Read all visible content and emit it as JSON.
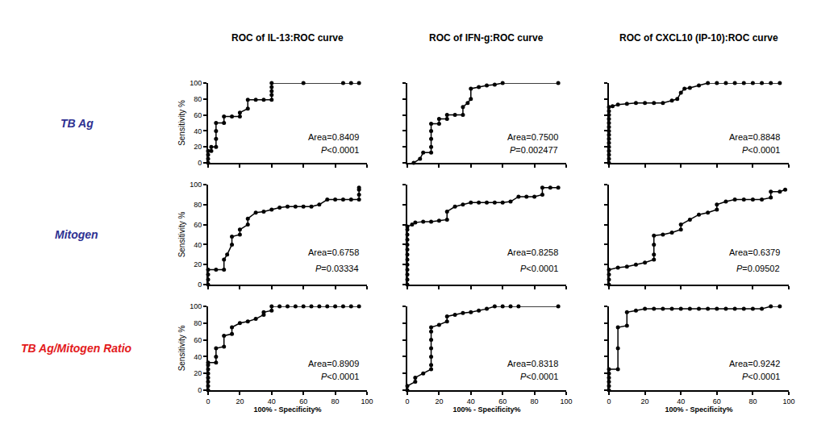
{
  "row_labels": [
    {
      "text": "TB Ag",
      "color": "#2e3192"
    },
    {
      "text": "Mitogen",
      "color": "#2e3192"
    },
    {
      "text": "TB Ag/Mitogen Ratio",
      "color": "#e31a1c"
    }
  ],
  "chart_data": [
    {
      "type": "line",
      "title": "ROC of IL-13:ROC curve",
      "y_label": "Sensitivity %",
      "color": "#000000",
      "marker": "circle",
      "tick_labels": "y",
      "x": [
        0,
        0,
        0,
        0,
        2,
        2,
        5,
        5,
        5,
        5,
        10,
        10,
        15,
        20,
        20,
        25,
        25,
        30,
        35,
        40,
        40,
        40,
        40,
        40,
        60,
        85,
        90,
        95
      ],
      "values": [
        0,
        5,
        10,
        15,
        15,
        20,
        20,
        30,
        40,
        50,
        50,
        58,
        58,
        58,
        63,
        68,
        79,
        79,
        79,
        79,
        85,
        90,
        95,
        100,
        100,
        100,
        100,
        100
      ],
      "xlim": [
        0,
        100
      ],
      "ylim": [
        0,
        100
      ],
      "xticks": [
        0,
        20,
        40,
        60,
        80,
        100
      ],
      "yticks": [
        0,
        20,
        40,
        60,
        80,
        100
      ],
      "annotations": [
        "Area=0.8409",
        "P<0.0001"
      ]
    },
    {
      "type": "line",
      "title": "ROC of IFN-g:ROC curve",
      "color": "#000000",
      "marker": "circle",
      "tick_labels": false,
      "x": [
        4,
        8,
        10,
        15,
        15,
        15,
        15,
        15,
        20,
        20,
        25,
        25,
        30,
        35,
        35,
        38,
        40,
        40,
        45,
        50,
        55,
        60,
        95
      ],
      "values": [
        0,
        5,
        13,
        13,
        20,
        30,
        40,
        49,
        49,
        55,
        55,
        60,
        60,
        60,
        70,
        75,
        80,
        93,
        95,
        97,
        98,
        100,
        100
      ],
      "xlim": [
        0,
        100
      ],
      "ylim": [
        0,
        100
      ],
      "xticks": [
        0,
        20,
        40,
        60,
        80,
        100
      ],
      "yticks": [
        0,
        20,
        40,
        60,
        80,
        100
      ],
      "annotations": [
        "Area=0.7500",
        "P=0.002477"
      ]
    },
    {
      "type": "line",
      "title": "ROC of CXCL10 (IP-10):ROC curve",
      "color": "#000000",
      "marker": "circle",
      "tick_labels": false,
      "x": [
        0,
        0,
        0,
        0,
        0,
        0,
        0,
        0,
        0,
        0,
        0,
        0,
        0,
        0,
        0,
        2,
        5,
        10,
        15,
        20,
        25,
        30,
        35,
        38,
        40,
        42,
        45,
        50,
        55,
        60,
        65,
        70,
        75,
        80,
        85,
        90,
        95
      ],
      "values": [
        0,
        5,
        10,
        15,
        20,
        25,
        30,
        35,
        40,
        45,
        50,
        55,
        60,
        65,
        70,
        71,
        73,
        74,
        75,
        75,
        75,
        75,
        78,
        80,
        88,
        93,
        94,
        97,
        100,
        100,
        100,
        100,
        100,
        100,
        100,
        100,
        100
      ],
      "xlim": [
        0,
        100
      ],
      "ylim": [
        0,
        100
      ],
      "xticks": [
        0,
        20,
        40,
        60,
        80,
        100
      ],
      "yticks": [
        0,
        20,
        40,
        60,
        80,
        100
      ],
      "annotations": [
        "Area=0.8848",
        "P<0.0001"
      ]
    },
    {
      "type": "line",
      "y_label": "Sensitivity %",
      "color": "#000000",
      "marker": "circle",
      "tick_labels": "y",
      "x": [
        0,
        0,
        0,
        0,
        5,
        10,
        10,
        12,
        15,
        15,
        20,
        20,
        25,
        25,
        30,
        35,
        40,
        45,
        50,
        55,
        60,
        65,
        70,
        75,
        80,
        85,
        90,
        95,
        95,
        95,
        95
      ],
      "values": [
        0,
        5,
        10,
        15,
        15,
        15,
        25,
        30,
        40,
        48,
        50,
        55,
        60,
        66,
        72,
        73,
        75,
        77,
        78,
        78,
        78,
        78,
        80,
        85,
        85,
        85,
        85,
        85,
        90,
        95,
        97
      ],
      "xlim": [
        0,
        100
      ],
      "ylim": [
        0,
        100
      ],
      "xticks": [
        0,
        20,
        40,
        60,
        80,
        100
      ],
      "yticks": [
        0,
        20,
        40,
        60,
        80,
        100
      ],
      "annotations": [
        "Area=0.6758",
        "P=0.03334"
      ]
    },
    {
      "type": "line",
      "color": "#000000",
      "marker": "circle",
      "tick_labels": false,
      "x": [
        0,
        0,
        0,
        0,
        0,
        0,
        0,
        0,
        0,
        0,
        0,
        0,
        0,
        3,
        5,
        10,
        15,
        20,
        25,
        25,
        30,
        35,
        40,
        45,
        50,
        55,
        60,
        65,
        70,
        75,
        80,
        85,
        85,
        90,
        95
      ],
      "values": [
        0,
        5,
        10,
        15,
        20,
        25,
        30,
        35,
        40,
        45,
        50,
        55,
        58,
        60,
        62,
        63,
        63,
        64,
        65,
        73,
        78,
        80,
        82,
        82,
        82,
        82,
        82,
        83,
        88,
        88,
        88,
        90,
        97,
        97,
        97
      ],
      "xlim": [
        0,
        100
      ],
      "ylim": [
        0,
        100
      ],
      "xticks": [
        0,
        20,
        40,
        60,
        80,
        100
      ],
      "yticks": [
        0,
        20,
        40,
        60,
        80,
        100
      ],
      "annotations": [
        "Area=0.8258",
        "P<0.0001"
      ]
    },
    {
      "type": "line",
      "color": "#000000",
      "marker": "circle",
      "tick_labels": false,
      "x": [
        0,
        0,
        0,
        0,
        5,
        10,
        15,
        20,
        25,
        25,
        25,
        25,
        30,
        35,
        40,
        40,
        45,
        50,
        55,
        60,
        60,
        65,
        70,
        75,
        80,
        85,
        90,
        90,
        95,
        98
      ],
      "values": [
        0,
        5,
        10,
        15,
        17,
        18,
        20,
        22,
        25,
        30,
        40,
        49,
        50,
        52,
        55,
        60,
        65,
        70,
        72,
        75,
        80,
        83,
        85,
        85,
        85,
        85,
        87,
        93,
        93,
        95
      ],
      "xlim": [
        0,
        100
      ],
      "ylim": [
        0,
        100
      ],
      "xticks": [
        0,
        20,
        40,
        60,
        80,
        100
      ],
      "yticks": [
        0,
        20,
        40,
        60,
        80,
        100
      ],
      "annotations": [
        "Area=0.6379",
        "P=0.09502"
      ]
    },
    {
      "type": "line",
      "x_label": "100% - Specificity%",
      "y_label": "Sensitivity %",
      "color": "#000000",
      "marker": "circle",
      "tick_labels": true,
      "x": [
        0,
        0,
        0,
        0,
        0,
        0,
        0,
        0,
        5,
        5,
        5,
        10,
        10,
        15,
        15,
        20,
        25,
        30,
        35,
        35,
        40,
        40,
        45,
        50,
        55,
        60,
        65,
        70,
        75,
        80,
        85,
        90,
        95
      ],
      "values": [
        0,
        5,
        10,
        15,
        20,
        25,
        30,
        33,
        33,
        40,
        50,
        52,
        65,
        67,
        75,
        80,
        82,
        85,
        90,
        93,
        95,
        100,
        100,
        100,
        100,
        100,
        100,
        100,
        100,
        100,
        100,
        100,
        100
      ],
      "xlim": [
        0,
        100
      ],
      "ylim": [
        0,
        100
      ],
      "xticks": [
        0,
        20,
        40,
        60,
        80,
        100
      ],
      "yticks": [
        0,
        20,
        40,
        60,
        80,
        100
      ],
      "annotations": [
        "Area=0.8909",
        "P<0.0001"
      ]
    },
    {
      "type": "line",
      "x_label": "100% - Specificity%",
      "color": "#000000",
      "marker": "circle",
      "tick_labels": "x",
      "x": [
        0,
        0,
        5,
        5,
        10,
        15,
        15,
        15,
        15,
        15,
        15,
        15,
        20,
        25,
        25,
        30,
        35,
        40,
        45,
        50,
        55,
        60,
        65,
        70,
        95
      ],
      "values": [
        0,
        5,
        10,
        15,
        20,
        25,
        30,
        40,
        50,
        60,
        70,
        75,
        78,
        82,
        88,
        90,
        92,
        93,
        95,
        97,
        100,
        100,
        100,
        100,
        100
      ],
      "xlim": [
        0,
        100
      ],
      "ylim": [
        0,
        100
      ],
      "xticks": [
        0,
        20,
        40,
        60,
        80,
        100
      ],
      "yticks": [
        0,
        20,
        40,
        60,
        80,
        100
      ],
      "annotations": [
        "Area=0.8318",
        "P<0.0001"
      ]
    },
    {
      "type": "line",
      "x_label": "100% - Specificity%",
      "color": "#000000",
      "marker": "circle",
      "tick_labels": "x",
      "x": [
        0,
        0,
        0,
        0,
        0,
        0,
        5,
        5,
        5,
        10,
        10,
        15,
        20,
        25,
        30,
        35,
        40,
        45,
        50,
        55,
        60,
        65,
        70,
        75,
        80,
        85,
        90,
        95
      ],
      "values": [
        0,
        5,
        10,
        15,
        20,
        25,
        25,
        50,
        75,
        77,
        93,
        95,
        97,
        97,
        97,
        97,
        97,
        97,
        97,
        97,
        97,
        97,
        97,
        97,
        97,
        97,
        100,
        100
      ],
      "xlim": [
        0,
        100
      ],
      "ylim": [
        0,
        100
      ],
      "xticks": [
        0,
        20,
        40,
        60,
        80,
        100
      ],
      "yticks": [
        0,
        20,
        40,
        60,
        80,
        100
      ],
      "annotations": [
        "Area=0.9242",
        "P<0.0001"
      ]
    }
  ]
}
